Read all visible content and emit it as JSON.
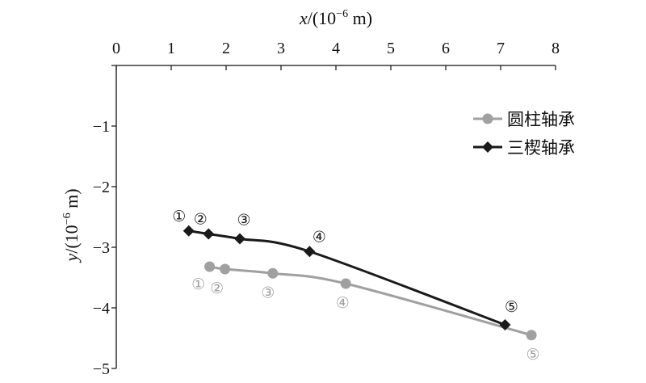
{
  "chart_data": {
    "type": "line",
    "title": "",
    "xlabel": {
      "var": "x",
      "unit": "/(10",
      "exp": "−6",
      "tail": " m)"
    },
    "ylabel": {
      "var": "y",
      "unit": "/(10",
      "exp": "−6",
      "tail": " m)"
    },
    "xlim": [
      0,
      8
    ],
    "ylim": [
      -5,
      0
    ],
    "x_axis_position": "top",
    "xticks": [
      0,
      1,
      2,
      3,
      4,
      5,
      6,
      7,
      8
    ],
    "yticks": [
      0,
      -1,
      -2,
      -3,
      -4,
      -5
    ],
    "xtick_labels": [
      "0",
      "1",
      "2",
      "3",
      "4",
      "5",
      "6",
      "7",
      "8"
    ],
    "ytick_labels": [
      "",
      "−1",
      "−2",
      "−3",
      "−4",
      "−5"
    ],
    "grid": false,
    "legend_position": "top-right",
    "series": [
      {
        "name": "圆柱轴承",
        "color": "#a0a0a0",
        "marker": "circle",
        "x": [
          1.7,
          1.98,
          2.85,
          4.18,
          7.56
        ],
        "y": [
          -3.32,
          -3.36,
          -3.43,
          -3.6,
          -4.45
        ],
        "point_labels": [
          "①",
          "②",
          "③",
          "④",
          "⑤"
        ]
      },
      {
        "name": "三楔轴承",
        "color": "#1a1a1a",
        "marker": "diamond",
        "x": [
          1.32,
          1.68,
          2.25,
          3.52,
          7.08
        ],
        "y": [
          -2.73,
          -2.78,
          -2.86,
          -3.07,
          -4.28
        ],
        "point_labels": [
          "①",
          "②",
          "③",
          "④",
          "⑤"
        ]
      }
    ]
  }
}
